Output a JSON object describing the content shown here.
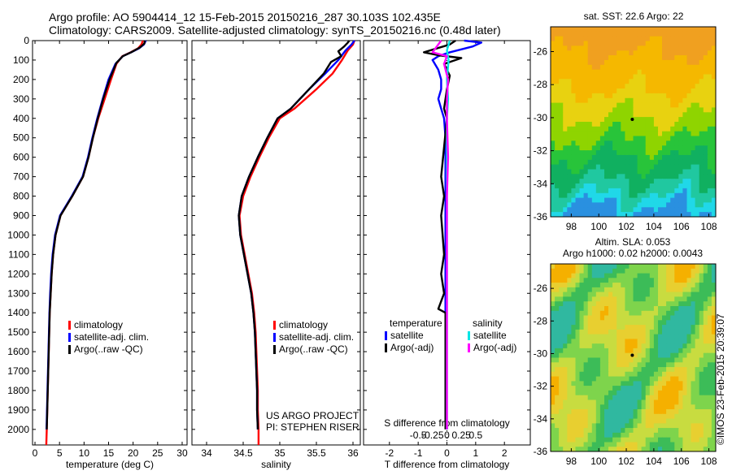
{
  "header": {
    "line1": "Argo profile: AO 5904414_12 15-Feb-2015 20150216_287 30.103S 102.435E",
    "line2": "Climatology: CARS2009. Satellite-adjusted climatology: synTS_20150216.nc (0.48d later)"
  },
  "colors": {
    "climatology": "#ff0000",
    "satellite": "#0000ff",
    "argo": "#000000",
    "salinity_satellite": "#00e5e5",
    "salinity_argo": "#ff00ff"
  },
  "chart_data": [
    {
      "type": "line",
      "id": "temperature",
      "xlabel": "temperature (deg C)",
      "xlim": [
        -0.5,
        31
      ],
      "xticks": [
        0,
        5,
        10,
        15,
        20,
        25,
        30
      ],
      "ylim": [
        2080,
        0
      ],
      "yticks": [
        0,
        100,
        200,
        300,
        400,
        500,
        600,
        700,
        800,
        900,
        1000,
        1100,
        1200,
        1300,
        1400,
        1500,
        1600,
        1700,
        1800,
        1900,
        2000
      ],
      "legend": [
        "climatology",
        "satellite-adj. clim.",
        "Argo(..raw -QC)"
      ],
      "series": [
        {
          "name": "climatology",
          "color": "#ff0000",
          "points": [
            [
              22.0,
              0
            ],
            [
              21.7,
              20
            ],
            [
              21.0,
              40
            ],
            [
              19.5,
              60
            ],
            [
              17.8,
              80
            ],
            [
              16.6,
              120
            ],
            [
              15.5,
              200
            ],
            [
              14.2,
              300
            ],
            [
              12.9,
              400
            ],
            [
              11.8,
              500
            ],
            [
              10.9,
              600
            ],
            [
              9.8,
              700
            ],
            [
              7.6,
              800
            ],
            [
              5.2,
              900
            ],
            [
              4.2,
              1000
            ],
            [
              3.7,
              1100
            ],
            [
              3.4,
              1200
            ],
            [
              3.2,
              1300
            ],
            [
              3.0,
              1400
            ],
            [
              2.9,
              1500
            ],
            [
              2.8,
              1600
            ],
            [
              2.7,
              1700
            ],
            [
              2.6,
              1800
            ],
            [
              2.5,
              1900
            ],
            [
              2.4,
              2000
            ],
            [
              2.3,
              2080
            ]
          ]
        },
        {
          "name": "satellite-adj. clim.",
          "color": "#0000ff",
          "points": [
            [
              22.6,
              0
            ],
            [
              22.2,
              20
            ],
            [
              21.2,
              40
            ],
            [
              19.6,
              60
            ],
            [
              17.9,
              80
            ],
            [
              16.4,
              120
            ],
            [
              15.0,
              200
            ],
            [
              13.8,
              300
            ],
            [
              12.7,
              400
            ],
            [
              11.7,
              500
            ],
            [
              10.8,
              600
            ],
            [
              9.7,
              700
            ],
            [
              7.5,
              800
            ],
            [
              5.1,
              900
            ],
            [
              4.1,
              1000
            ],
            [
              3.6,
              1100
            ],
            [
              3.3,
              1200
            ],
            [
              3.1,
              1300
            ],
            [
              2.95,
              1400
            ],
            [
              2.85,
              1500
            ],
            [
              2.75,
              1600
            ],
            [
              2.65,
              1700
            ],
            [
              2.55,
              1800
            ],
            [
              2.45,
              1900
            ],
            [
              2.35,
              2000
            ]
          ]
        },
        {
          "name": "Argo(..raw -QC)",
          "color": "#000000",
          "points": [
            [
              22.4,
              0
            ],
            [
              22.3,
              15
            ],
            [
              21.4,
              35
            ],
            [
              19.6,
              60
            ],
            [
              17.9,
              80
            ],
            [
              16.6,
              115
            ],
            [
              15.2,
              200
            ],
            [
              13.9,
              300
            ],
            [
              12.8,
              400
            ],
            [
              11.8,
              500
            ],
            [
              10.9,
              600
            ],
            [
              9.8,
              700
            ],
            [
              7.6,
              800
            ],
            [
              5.2,
              900
            ],
            [
              4.2,
              1000
            ],
            [
              3.7,
              1100
            ],
            [
              3.4,
              1200
            ],
            [
              3.2,
              1300
            ],
            [
              3.0,
              1400
            ],
            [
              2.9,
              1500
            ],
            [
              2.8,
              1600
            ],
            [
              2.7,
              1700
            ],
            [
              2.6,
              1800
            ],
            [
              2.5,
              1900
            ],
            [
              2.4,
              2000
            ]
          ]
        }
      ]
    },
    {
      "type": "line",
      "id": "salinity",
      "xlabel": "salinity",
      "xlim": [
        33.8,
        36.1
      ],
      "xticks": [
        34,
        34.5,
        35,
        35.5,
        36
      ],
      "xticklabels": [
        "34",
        "34.5",
        "35",
        "35.5",
        "36"
      ],
      "ylim": [
        2080,
        0
      ],
      "legend": [
        "climatology",
        "satellite-adj. clim.",
        "Argo(..raw -QC)"
      ],
      "annotation": [
        "US ARGO PROJECT",
        "PI: STEPHEN RISER"
      ],
      "series": [
        {
          "name": "climatology",
          "color": "#ff0000",
          "points": [
            [
              36.02,
              0
            ],
            [
              36.0,
              20
            ],
            [
              35.93,
              50
            ],
            [
              35.85,
              100
            ],
            [
              35.72,
              170
            ],
            [
              35.5,
              250
            ],
            [
              35.2,
              350
            ],
            [
              35.0,
              400
            ],
            [
              34.85,
              500
            ],
            [
              34.72,
              600
            ],
            [
              34.6,
              700
            ],
            [
              34.5,
              800
            ],
            [
              34.45,
              900
            ],
            [
              34.47,
              1000
            ],
            [
              34.52,
              1100
            ],
            [
              34.57,
              1200
            ],
            [
              34.62,
              1300
            ],
            [
              34.65,
              1400
            ],
            [
              34.67,
              1500
            ],
            [
              34.68,
              1600
            ],
            [
              34.69,
              1700
            ],
            [
              34.7,
              1800
            ],
            [
              34.7,
              1900
            ],
            [
              34.71,
              2000
            ],
            [
              34.71,
              2080
            ]
          ]
        },
        {
          "name": "satellite-adj. clim.",
          "color": "#0000ff",
          "points": [
            [
              36.02,
              0
            ],
            [
              35.98,
              20
            ],
            [
              35.9,
              50
            ],
            [
              35.8,
              100
            ],
            [
              35.62,
              170
            ],
            [
              35.4,
              250
            ],
            [
              35.15,
              350
            ],
            [
              34.97,
              400
            ],
            [
              34.83,
              500
            ],
            [
              34.7,
              600
            ],
            [
              34.58,
              700
            ],
            [
              34.48,
              800
            ],
            [
              34.44,
              900
            ],
            [
              34.46,
              1000
            ],
            [
              34.51,
              1100
            ],
            [
              34.56,
              1200
            ],
            [
              34.61,
              1300
            ],
            [
              34.64,
              1400
            ],
            [
              34.66,
              1500
            ],
            [
              34.67,
              1600
            ],
            [
              34.68,
              1700
            ],
            [
              34.69,
              1800
            ],
            [
              34.69,
              1900
            ],
            [
              34.7,
              2000
            ]
          ]
        },
        {
          "name": "Argo(..raw -QC)",
          "color": "#000000",
          "points": [
            [
              35.95,
              0
            ],
            [
              35.93,
              10
            ],
            [
              35.88,
              30
            ],
            [
              35.8,
              55
            ],
            [
              35.84,
              80
            ],
            [
              35.7,
              110
            ],
            [
              35.6,
              170
            ],
            [
              35.4,
              250
            ],
            [
              35.15,
              350
            ],
            [
              34.97,
              400
            ],
            [
              34.83,
              500
            ],
            [
              34.7,
              600
            ],
            [
              34.58,
              700
            ],
            [
              34.48,
              800
            ],
            [
              34.44,
              900
            ],
            [
              34.46,
              1000
            ],
            [
              34.51,
              1100
            ],
            [
              34.56,
              1200
            ],
            [
              34.61,
              1300
            ],
            [
              34.64,
              1400
            ],
            [
              34.66,
              1500
            ],
            [
              34.67,
              1600
            ],
            [
              34.68,
              1700
            ],
            [
              34.69,
              1800
            ],
            [
              34.69,
              1900
            ],
            [
              34.7,
              2000
            ]
          ]
        }
      ]
    },
    {
      "type": "line",
      "id": "difference",
      "xlabel": "T difference from climatology",
      "xlabel_top": "S difference from climatology",
      "xlim": [
        -2.9,
        2.9
      ],
      "xticks": [
        -2,
        -1,
        0,
        1,
        2
      ],
      "sticks": [
        -0.5,
        -0.25,
        0,
        0.25,
        0.5
      ],
      "sticklabels": [
        "-0.5",
        "-0.25",
        "0",
        "0.25",
        "0.5"
      ],
      "ylim": [
        2080,
        0
      ],
      "legend_temperature": {
        "title": "temperature",
        "items": [
          "satellite",
          "Argo(-adj)"
        ]
      },
      "legend_salinity": {
        "title": "salinity",
        "items": [
          "satellite",
          "Argo(-adj)"
        ]
      },
      "series": [
        {
          "name": "satellite",
          "group": "temperature",
          "color": "#0000ff",
          "points": [
            [
              0.6,
              0
            ],
            [
              1.2,
              10
            ],
            [
              0.9,
              30
            ],
            [
              0.1,
              60
            ],
            [
              -0.3,
              80
            ],
            [
              -0.5,
              100
            ],
            [
              -0.3,
              150
            ],
            [
              -0.2,
              200
            ],
            [
              -0.2,
              250
            ],
            [
              -0.3,
              300
            ],
            [
              -0.2,
              350
            ],
            [
              -0.1,
              400
            ],
            [
              -0.05,
              500
            ],
            [
              -0.05,
              700
            ],
            [
              -0.05,
              900
            ],
            [
              -0.05,
              1100
            ],
            [
              -0.05,
              1300
            ],
            [
              -0.05,
              1500
            ],
            [
              -0.03,
              1700
            ],
            [
              -0.02,
              1900
            ],
            [
              0,
              2000
            ]
          ]
        },
        {
          "name": "Argo(-adj)",
          "group": "temperature",
          "color": "#000000",
          "points": [
            [
              0.3,
              0
            ],
            [
              0.1,
              20
            ],
            [
              -0.8,
              60
            ],
            [
              -0.3,
              75
            ],
            [
              0.5,
              90
            ],
            [
              -0.1,
              120
            ],
            [
              0.1,
              180
            ],
            [
              0.0,
              250
            ],
            [
              -0.1,
              350
            ],
            [
              0.0,
              400
            ],
            [
              -0.2,
              700
            ],
            [
              -0.1,
              800
            ],
            [
              -0.2,
              900
            ],
            [
              -0.1,
              1100
            ],
            [
              -0.2,
              1200
            ],
            [
              -0.1,
              1300
            ],
            [
              -0.3,
              1380
            ],
            [
              -0.05,
              1400
            ],
            [
              -0.05,
              1600
            ],
            [
              -0.05,
              1800
            ],
            [
              -0.05,
              2000
            ]
          ]
        },
        {
          "name": "satellite",
          "group": "salinity",
          "color": "#00e5e5",
          "points": [
            [
              0.05,
              0
            ],
            [
              0.0,
              50
            ],
            [
              0.03,
              100
            ],
            [
              0.0,
              200
            ],
            [
              0.02,
              300
            ],
            [
              0.0,
              400
            ],
            [
              0.0,
              600
            ],
            [
              0.0,
              800
            ],
            [
              0.0,
              1000
            ],
            [
              0.0,
              1200
            ],
            [
              0.0,
              1400
            ],
            [
              0.0,
              1600
            ],
            [
              0.0,
              1800
            ],
            [
              0.0,
              2000
            ]
          ]
        },
        {
          "name": "Argo(-adj)",
          "group": "salinity",
          "color": "#ff00ff",
          "points": [
            [
              -0.1,
              0
            ],
            [
              -0.25,
              60
            ],
            [
              0.0,
              80
            ],
            [
              -0.05,
              120
            ],
            [
              0.02,
              200
            ],
            [
              0.0,
              300
            ],
            [
              0.0,
              400
            ],
            [
              0.02,
              600
            ],
            [
              0.0,
              800
            ],
            [
              0.0,
              1000
            ],
            [
              0.0,
              1200
            ],
            [
              0.0,
              1400
            ],
            [
              0.0,
              1600
            ],
            [
              0.0,
              1800
            ],
            [
              0.0,
              2000
            ]
          ]
        }
      ]
    },
    {
      "type": "heatmap",
      "id": "sst-map",
      "title": "sat. SST: 22.6  Argo: 22",
      "xlim": [
        96.5,
        108.5
      ],
      "ylim": [
        -36,
        -24.5
      ],
      "xticks": [
        98,
        100,
        102,
        104,
        106,
        108
      ],
      "yticks": [
        -26,
        -28,
        -30,
        -32,
        -34,
        -36
      ]
    },
    {
      "type": "heatmap",
      "id": "sla-map",
      "title_line1": "Altim. SLA: 0.053",
      "title_line2": "Argo h1000: 0.02  h2000: 0.0043",
      "xlim": [
        96.5,
        108.5
      ],
      "ylim": [
        -36,
        -24.5
      ],
      "xticks": [
        98,
        100,
        102,
        104,
        106,
        108
      ],
      "yticks": [
        -26,
        -28,
        -30,
        -32,
        -34,
        -36
      ]
    }
  ],
  "footer": {
    "stamp": "©IMOS 23-Feb-2015 20:39:07"
  }
}
